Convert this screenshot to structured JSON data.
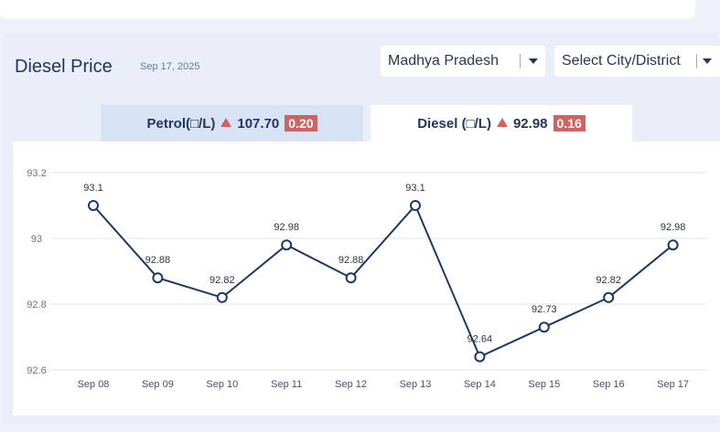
{
  "header": {
    "title": "Diesel Price",
    "date": "Sep 17, 2025"
  },
  "filters": {
    "state": "Madhya Pradesh",
    "city": "Select City/District"
  },
  "tabs": [
    {
      "label": "Petrol(□/L)",
      "price": "107.70",
      "change": "0.20",
      "active": false
    },
    {
      "label": "Diesel (□/L)",
      "price": "92.98",
      "change": "0.16",
      "active": true
    }
  ],
  "colors": {
    "line": "#1f3763",
    "up_badge": "#d06262",
    "active_tab": "#ffffff",
    "inactive_tab": "#d8e3f6"
  },
  "chart_data": {
    "type": "line",
    "categories": [
      "Sep 08",
      "Sep 09",
      "Sep 10",
      "Sep 11",
      "Sep 12",
      "Sep 13",
      "Sep 14",
      "Sep 15",
      "Sep 16",
      "Sep 17"
    ],
    "values": [
      93.1,
      92.88,
      92.82,
      92.98,
      92.88,
      93.1,
      92.64,
      92.73,
      92.82,
      92.98
    ],
    "data_labels": [
      "93.1",
      "92.88",
      "92.82",
      "92.98",
      "92.88",
      "93.1",
      "92.64",
      "92.73",
      "92.82",
      "92.98"
    ],
    "y_ticks": [
      "92.6",
      "92.8",
      "93",
      "93.2"
    ],
    "ylim": [
      92.6,
      93.2
    ],
    "grid": true,
    "legend": "none"
  }
}
